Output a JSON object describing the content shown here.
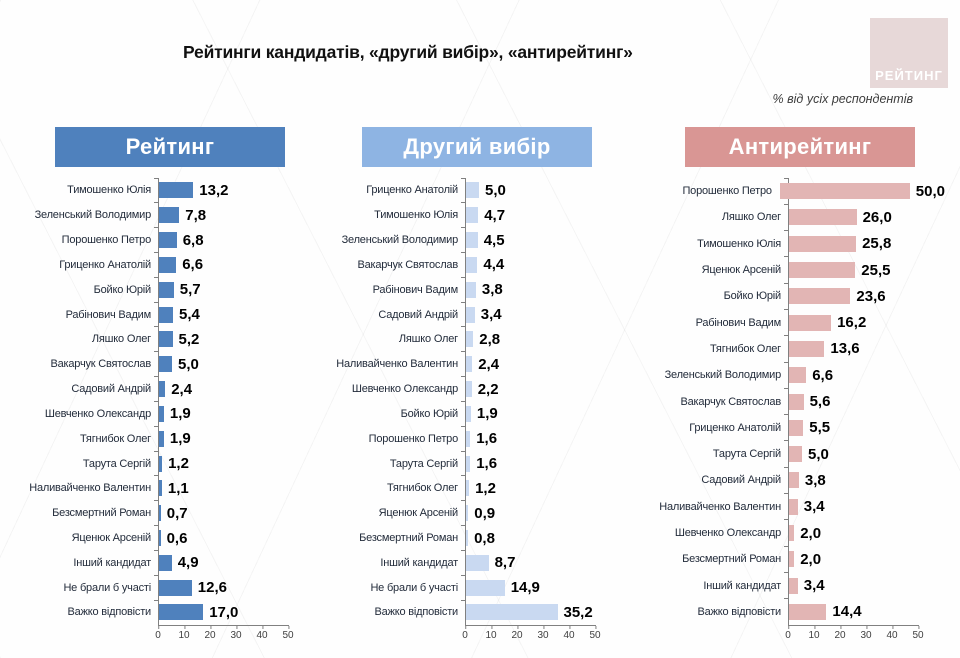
{
  "title": "Рейтинги кандидатів, «другий вибір», «антирейтинг»",
  "subtitle": "% від усіх респондентів",
  "logo_text": "РЕЙТИНГ",
  "colors": {
    "rating_header": "#4f81bd",
    "rating_bar": "#4f81bd",
    "second_header": "#8eb4e3",
    "second_bar": "#c9d9f1",
    "anti_header": "#d99694",
    "anti_bar": "#e2b5b4",
    "logo_bg": "#e7d8d8",
    "axis_line": "#808080"
  },
  "chart_data": [
    {
      "type": "bar",
      "orientation": "horizontal",
      "title": "Рейтинг",
      "xlim": [
        0,
        50
      ],
      "ticks": [
        0,
        10,
        20,
        30,
        40,
        50
      ],
      "header_color": "#4f81bd",
      "bar_color": "#4f81bd",
      "categories": [
        "Тимошенко Юлія",
        "Зеленський Володимир",
        "Порошенко Петро",
        "Гриценко Анатолій",
        "Бойко Юрій",
        "Рабінович Вадим",
        "Ляшко Олег",
        "Вакарчук Святослав",
        "Садовий Андрій",
        "Шевченко Олександр",
        "Тягнибок Олег",
        "Тарута Сергій",
        "Наливайченко Валентин",
        "Безсмертний Роман",
        "Яценюк Арсеній",
        "Інший кандидат",
        "Не брали б участі",
        "Важко відповісти"
      ],
      "values": [
        13.2,
        7.8,
        6.8,
        6.6,
        5.7,
        5.4,
        5.2,
        5.0,
        2.4,
        1.9,
        1.9,
        1.2,
        1.1,
        0.7,
        0.6,
        4.9,
        12.6,
        17.0
      ]
    },
    {
      "type": "bar",
      "orientation": "horizontal",
      "title": "Другий вибір",
      "xlim": [
        0,
        50
      ],
      "ticks": [
        0,
        10,
        20,
        30,
        40,
        50
      ],
      "header_color": "#8eb4e3",
      "bar_color": "#c9d9f1",
      "categories": [
        "Гриценко Анатолій",
        "Тимошенко Юлія",
        "Зеленський Володимир",
        "Вакарчук Святослав",
        "Рабінович Вадим",
        "Садовий Андрій",
        "Ляшко Олег",
        "Наливайченко Валентин",
        "Шевченко Олександр",
        "Бойко Юрій",
        "Порошенко Петро",
        "Тарута Сергій",
        "Тягнибок Олег",
        "Яценюк Арсеній",
        "Безсмертний Роман",
        "Інший кандидат",
        "Не брали б участі",
        "Важко відповісти"
      ],
      "values": [
        5.0,
        4.7,
        4.5,
        4.4,
        3.8,
        3.4,
        2.8,
        2.4,
        2.2,
        1.9,
        1.6,
        1.6,
        1.2,
        0.9,
        0.8,
        8.7,
        14.9,
        35.2
      ]
    },
    {
      "type": "bar",
      "orientation": "horizontal",
      "title": "Антирейтинг",
      "xlim": [
        0,
        50
      ],
      "ticks": [
        0,
        10,
        20,
        30,
        40,
        50
      ],
      "header_color": "#d99694",
      "bar_color": "#e2b5b4",
      "categories": [
        "Порошенко Петро",
        "Ляшко Олег",
        "Тимошенко Юлія",
        "Яценюк Арсеній",
        "Бойко Юрій",
        "Рабінович Вадим",
        "Тягнибок Олег",
        "Зеленський Володимир",
        "Вакарчук Святослав",
        "Гриценко Анатолій",
        "Тарута Сергій",
        "Садовий Андрій",
        "Наливайченко Валентин",
        "Шевченко Олександр",
        "Безсмертний Роман",
        "Інший кандидат",
        "Важко відповісти"
      ],
      "values": [
        50.0,
        26.0,
        25.8,
        25.5,
        23.6,
        16.2,
        13.6,
        6.6,
        5.6,
        5.5,
        5.0,
        3.8,
        3.4,
        2.0,
        2.0,
        3.4,
        14.4
      ]
    }
  ]
}
